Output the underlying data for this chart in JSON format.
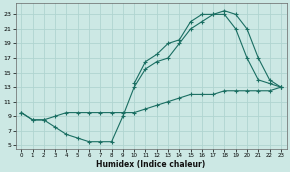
{
  "xlabel": "Humidex (Indice chaleur)",
  "bg_color": "#cce8e4",
  "grid_color": "#b0d4d0",
  "line_color": "#1a6e62",
  "xlim": [
    -0.5,
    23.5
  ],
  "ylim": [
    4.5,
    24.5
  ],
  "xticks": [
    0,
    1,
    2,
    3,
    4,
    5,
    6,
    7,
    8,
    9,
    10,
    11,
    12,
    13,
    14,
    15,
    16,
    17,
    18,
    19,
    20,
    21,
    22,
    23
  ],
  "yticks": [
    5,
    7,
    9,
    11,
    13,
    15,
    17,
    19,
    21,
    23
  ],
  "line1_x": [
    0,
    1,
    2,
    3,
    4,
    5,
    6,
    7,
    8,
    9,
    10,
    11,
    12,
    13,
    14,
    15,
    16,
    17,
    18,
    19,
    20,
    21,
    22,
    23
  ],
  "line1_y": [
    9.5,
    8.5,
    8.5,
    9.0,
    9.5,
    9.5,
    9.5,
    9.5,
    9.5,
    9.5,
    9.5,
    10.0,
    10.5,
    11.0,
    11.5,
    12.0,
    12.0,
    12.0,
    12.5,
    12.5,
    12.5,
    12.5,
    12.5,
    13.0
  ],
  "line2_x": [
    0,
    1,
    2,
    3,
    4,
    5,
    6,
    7,
    8,
    9,
    10,
    11,
    12,
    13,
    14,
    15,
    16,
    17,
    18,
    19,
    20,
    21,
    22,
    23
  ],
  "line2_y": [
    9.5,
    8.5,
    8.5,
    7.5,
    6.5,
    6.0,
    5.5,
    5.5,
    5.5,
    9.0,
    13.0,
    15.5,
    16.5,
    17.0,
    19.0,
    21.0,
    22.0,
    23.0,
    23.0,
    21.0,
    17.0,
    14.0,
    13.5,
    13.0
  ],
  "line3_x": [
    10,
    11,
    12,
    13,
    14,
    15,
    16,
    17,
    18,
    19,
    20,
    21,
    22,
    23
  ],
  "line3_y": [
    13.5,
    16.5,
    17.5,
    19.0,
    19.5,
    22.0,
    23.0,
    23.0,
    23.5,
    23.0,
    21.0,
    17.0,
    14.0,
    13.0
  ]
}
